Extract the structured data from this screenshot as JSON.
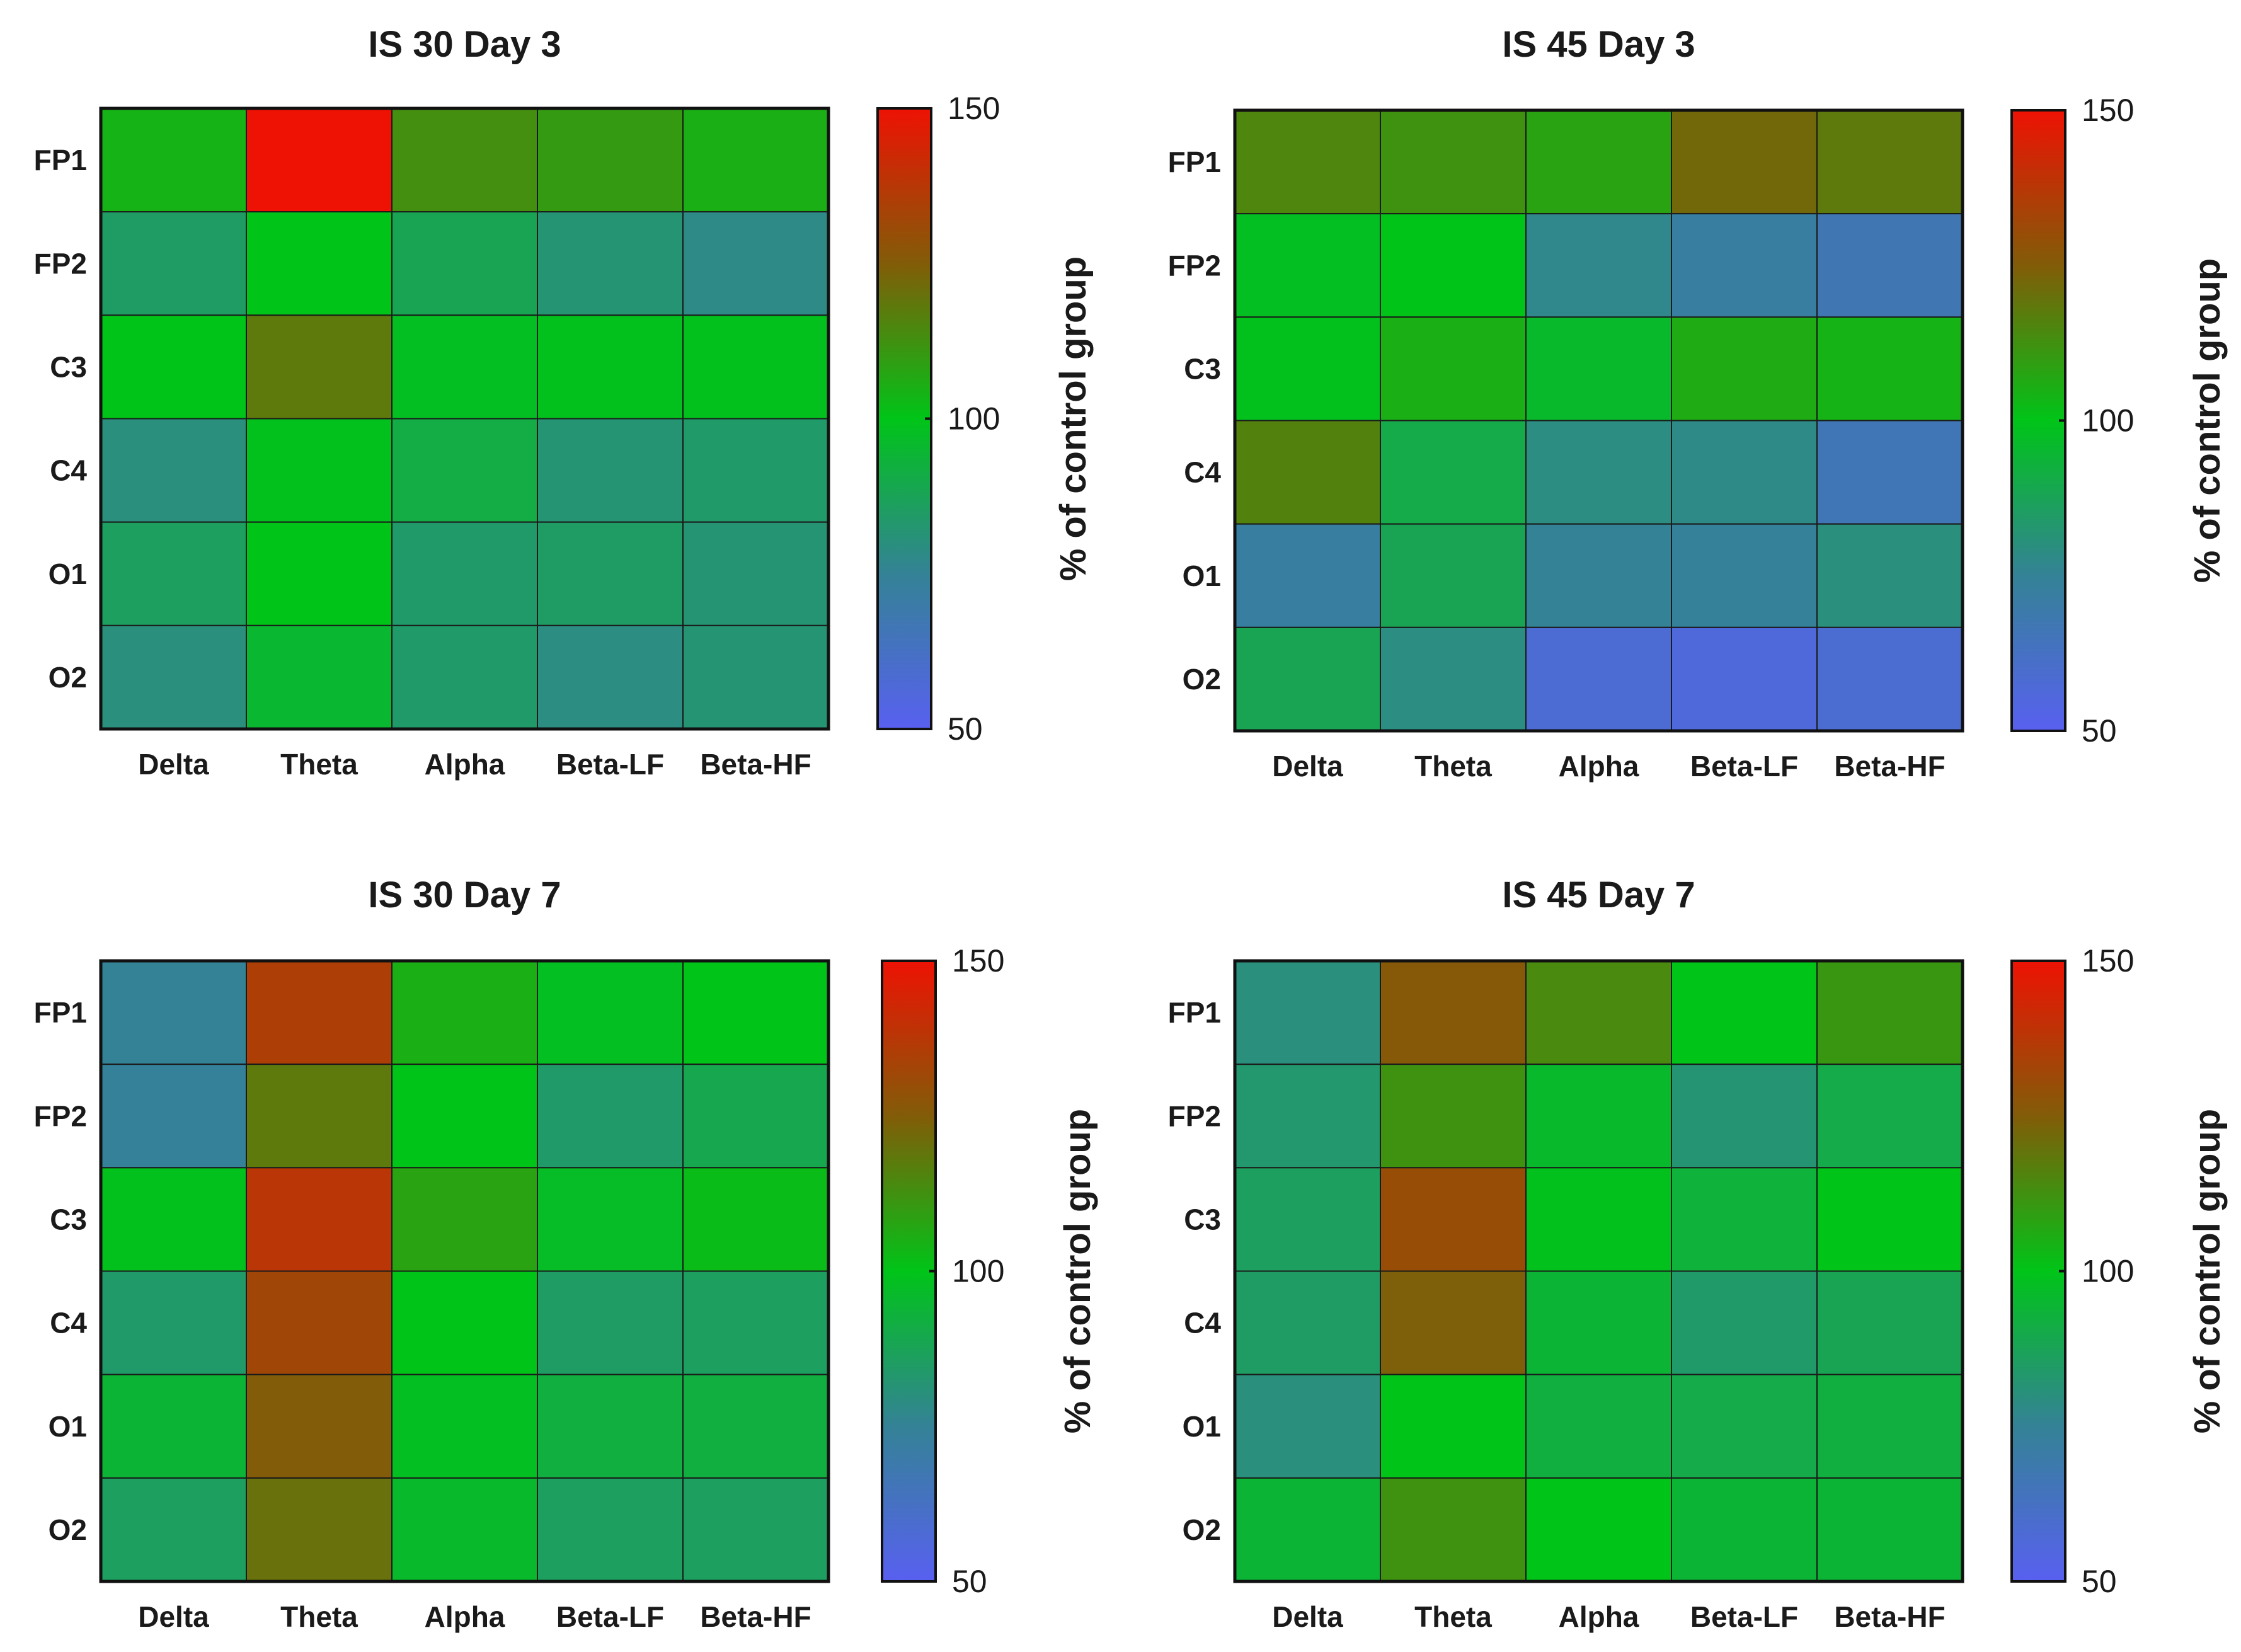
{
  "chart_data": [
    {
      "type": "heatmap",
      "title": "IS 30 Day 3",
      "x_categories": [
        "Delta",
        "Theta",
        "Alpha",
        "Beta-LF",
        "Beta-HF"
      ],
      "y_categories": [
        "FP1",
        "FP2",
        "C3",
        "C4",
        "O1",
        "O2"
      ],
      "values": [
        [
          104,
          150,
          113,
          110,
          105
        ],
        [
          85,
          100,
          88,
          82,
          78
        ],
        [
          100,
          118,
          98,
          99,
          99
        ],
        [
          80,
          99,
          91,
          82,
          84
        ],
        [
          86,
          100,
          84,
          85,
          82
        ],
        [
          80,
          95,
          84,
          79,
          82
        ]
      ],
      "colorbar": {
        "min": 50,
        "max": 150,
        "ticks": [
          50,
          100,
          150
        ],
        "label": "% of control group"
      }
    },
    {
      "type": "heatmap",
      "title": "IS 45 Day 3",
      "x_categories": [
        "Delta",
        "Theta",
        "Alpha",
        "Beta-LF",
        "Beta-HF"
      ],
      "y_categories": [
        "FP1",
        "FP2",
        "C3",
        "C4",
        "O1",
        "O2"
      ],
      "values": [
        [
          115,
          112,
          108,
          122,
          118
        ],
        [
          98,
          100,
          77,
          72,
          67
        ],
        [
          99,
          105,
          96,
          106,
          104
        ],
        [
          116,
          90,
          79,
          78,
          66
        ],
        [
          72,
          88,
          75,
          74,
          80
        ],
        [
          88,
          79,
          58,
          56,
          59
        ]
      ],
      "colorbar": {
        "min": 50,
        "max": 150,
        "ticks": [
          50,
          100,
          150
        ],
        "label": "% of control group"
      }
    },
    {
      "type": "heatmap",
      "title": "IS 30 Day 7",
      "x_categories": [
        "Delta",
        "Theta",
        "Alpha",
        "Beta-LF",
        "Beta-HF"
      ],
      "y_categories": [
        "FP1",
        "FP2",
        "C3",
        "C4",
        "O1",
        "O2"
      ],
      "values": [
        [
          75,
          135,
          105,
          98,
          100
        ],
        [
          74,
          118,
          100,
          84,
          89
        ],
        [
          99,
          138,
          108,
          97,
          102
        ],
        [
          84,
          132,
          100,
          85,
          86
        ],
        [
          94,
          125,
          98,
          92,
          92
        ],
        [
          86,
          120,
          96,
          86,
          86
        ]
      ],
      "colorbar": {
        "min": 50,
        "max": 150,
        "ticks": [
          50,
          100,
          150
        ],
        "label": "% of control group"
      }
    },
    {
      "type": "heatmap",
      "title": "IS 45 Day 7",
      "x_categories": [
        "Delta",
        "Theta",
        "Alpha",
        "Beta-LF",
        "Beta-HF"
      ],
      "y_categories": [
        "FP1",
        "FP2",
        "C3",
        "C4",
        "O1",
        "O2"
      ],
      "values": [
        [
          80,
          126,
          114,
          100,
          111
        ],
        [
          83,
          112,
          96,
          82,
          90
        ],
        [
          86,
          130,
          99,
          93,
          100
        ],
        [
          85,
          124,
          94,
          84,
          88
        ],
        [
          80,
          100,
          92,
          90,
          92
        ],
        [
          94,
          112,
          100,
          94,
          94
        ]
      ],
      "colorbar": {
        "min": 50,
        "max": 150,
        "ticks": [
          50,
          100,
          150
        ],
        "label": "% of control group"
      }
    }
  ]
}
